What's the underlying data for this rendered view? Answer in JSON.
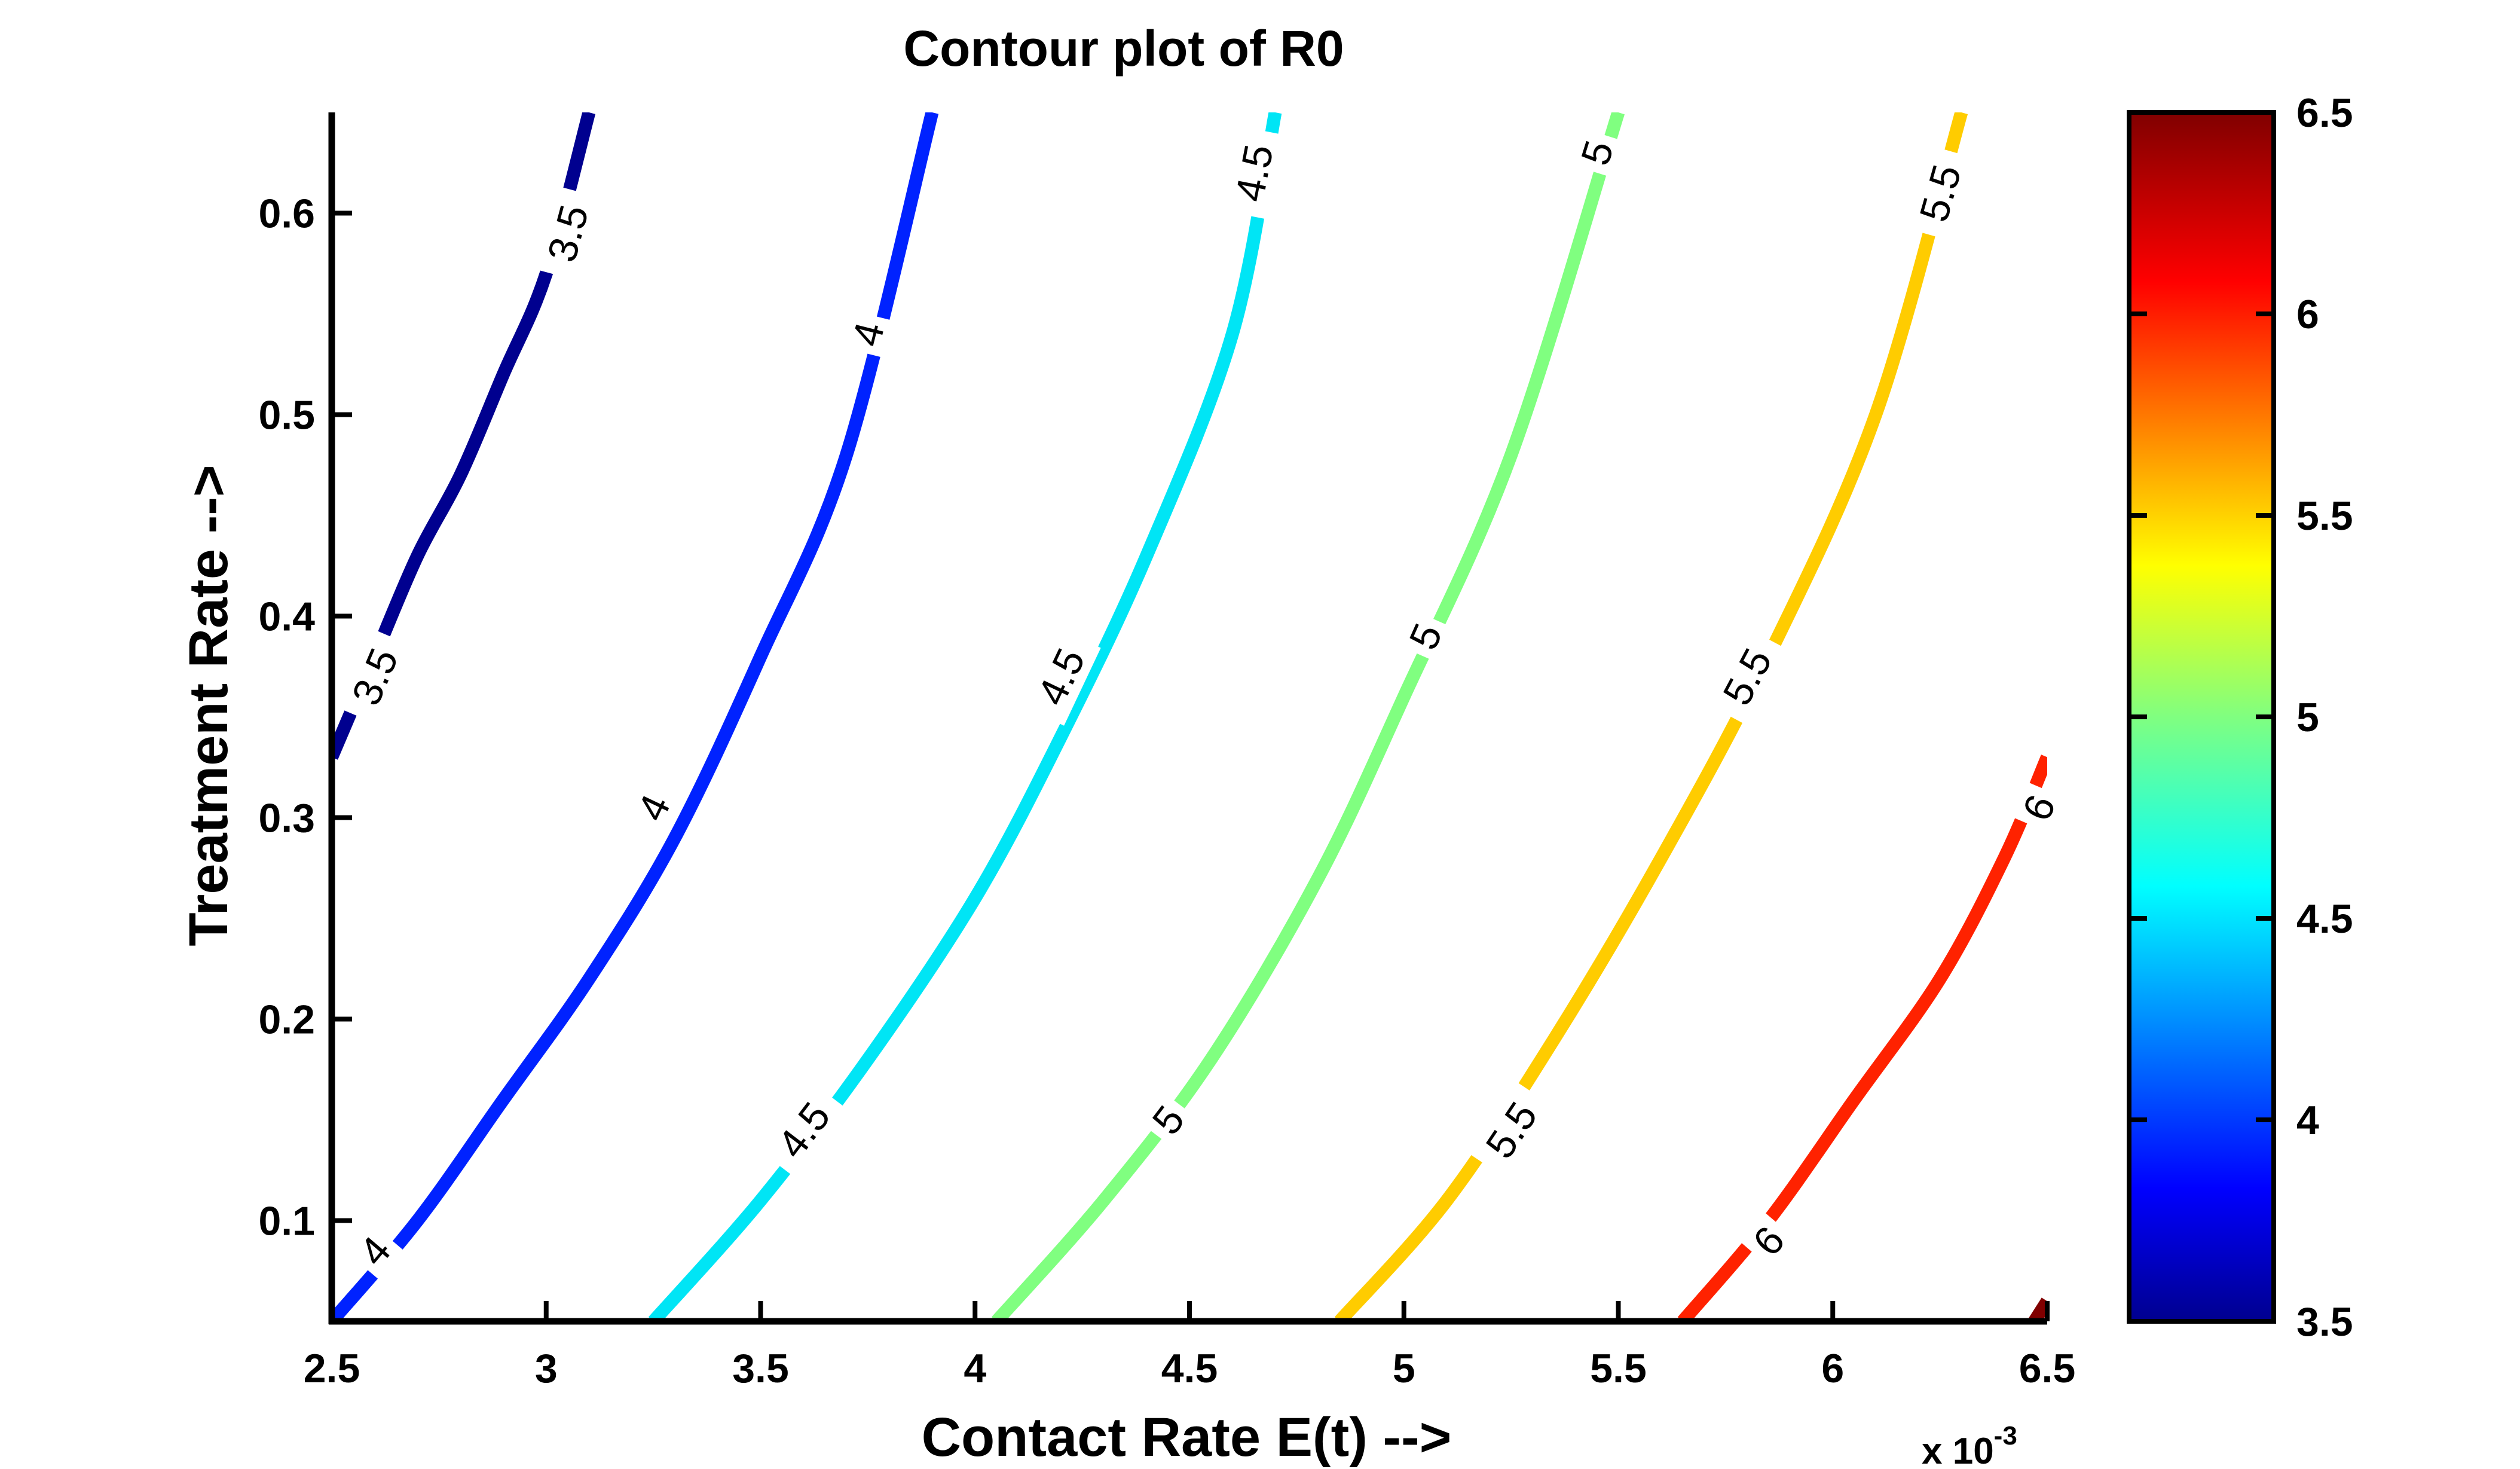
{
  "chart_data": {
    "type": "contour",
    "title": "Contour plot of R0",
    "xlabel": "Contact Rate E(t) -->",
    "ylabel": "Treatment Rate -->",
    "x_multiplier_label": "x 10",
    "x_multiplier_exponent": "-3",
    "xlim": [
      2.5,
      6.5
    ],
    "ylim": [
      0.05,
      0.65
    ],
    "x_ticks": [
      "2.5",
      "3",
      "3.5",
      "4",
      "4.5",
      "5",
      "5.5",
      "6",
      "6.5"
    ],
    "y_ticks": [
      "0.1",
      "0.2",
      "0.3",
      "0.4",
      "0.5",
      "0.6"
    ],
    "colorbar": {
      "min": 3.5,
      "max": 6.5,
      "ticks": [
        "3.5",
        "4",
        "4.5",
        "5",
        "5.5",
        "6",
        "6.5"
      ],
      "colormap": "jet"
    },
    "contours": [
      {
        "level": "3.5",
        "color": "#00008F",
        "points": [
          [
            2.5,
            0.33
          ],
          [
            2.6,
            0.38
          ],
          [
            2.7,
            0.43
          ],
          [
            2.8,
            0.47
          ],
          [
            2.9,
            0.52
          ],
          [
            3.0,
            0.57
          ],
          [
            3.1,
            0.65
          ]
        ],
        "labels": [
          [
            2.6,
            0.37
          ],
          [
            3.05,
            0.59
          ]
        ]
      },
      {
        "level": "4",
        "color": "#0022FF",
        "points": [
          [
            2.5,
            0.05
          ],
          [
            2.7,
            0.1
          ],
          [
            2.9,
            0.16
          ],
          [
            3.1,
            0.22
          ],
          [
            3.3,
            0.29
          ],
          [
            3.5,
            0.38
          ],
          [
            3.7,
            0.48
          ],
          [
            3.9,
            0.65
          ]
        ],
        "labels": [
          [
            2.6,
            0.085
          ],
          [
            3.25,
            0.305
          ],
          [
            3.75,
            0.54
          ]
        ]
      },
      {
        "level": "4.5",
        "color": "#00E5F5",
        "points": [
          [
            3.25,
            0.05
          ],
          [
            3.5,
            0.11
          ],
          [
            3.75,
            0.18
          ],
          [
            4.0,
            0.26
          ],
          [
            4.2,
            0.34
          ],
          [
            4.4,
            0.43
          ],
          [
            4.6,
            0.54
          ],
          [
            4.7,
            0.65
          ]
        ],
        "labels": [
          [
            3.6,
            0.145
          ],
          [
            4.2,
            0.37
          ],
          [
            4.65,
            0.62
          ]
        ]
      },
      {
        "level": "5",
        "color": "#80FF80",
        "points": [
          [
            4.05,
            0.05
          ],
          [
            4.3,
            0.11
          ],
          [
            4.55,
            0.18
          ],
          [
            4.8,
            0.27
          ],
          [
            5.0,
            0.36
          ],
          [
            5.25,
            0.48
          ],
          [
            5.5,
            0.65
          ]
        ],
        "labels": [
          [
            4.45,
            0.15
          ],
          [
            5.05,
            0.39
          ],
          [
            5.45,
            0.63
          ]
        ]
      },
      {
        "level": "5.5",
        "color": "#FFCC00",
        "points": [
          [
            4.85,
            0.05
          ],
          [
            5.1,
            0.11
          ],
          [
            5.35,
            0.19
          ],
          [
            5.6,
            0.28
          ],
          [
            5.85,
            0.38
          ],
          [
            6.1,
            0.5
          ],
          [
            6.3,
            0.65
          ]
        ],
        "labels": [
          [
            5.25,
            0.145
          ],
          [
            5.8,
            0.37
          ],
          [
            6.25,
            0.61
          ]
        ]
      },
      {
        "level": "6",
        "color": "#FF2200",
        "points": [
          [
            5.65,
            0.05
          ],
          [
            5.85,
            0.1
          ],
          [
            6.05,
            0.16
          ],
          [
            6.25,
            0.22
          ],
          [
            6.4,
            0.28
          ],
          [
            6.5,
            0.33
          ]
        ],
        "labels": [
          [
            5.85,
            0.09
          ],
          [
            6.48,
            0.305
          ]
        ]
      },
      {
        "level": "6.5",
        "color": "#800000",
        "points": [
          [
            6.47,
            0.05
          ],
          [
            6.5,
            0.06
          ]
        ],
        "labels": []
      }
    ]
  }
}
